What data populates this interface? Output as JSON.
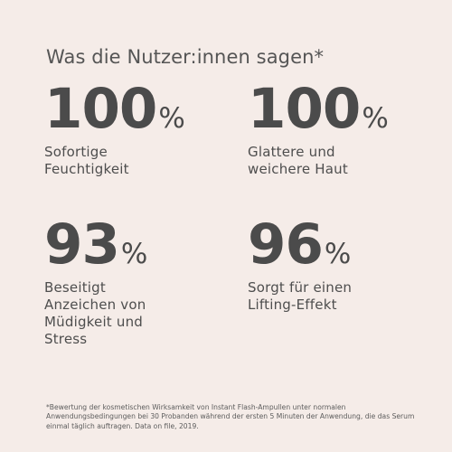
{
  "heading": "Was die Nutzer:innen sagen*",
  "stats": [
    {
      "value": "100",
      "unit": "%",
      "label": "Sofortige\nFeuchtigkeit"
    },
    {
      "value": "100",
      "unit": "%",
      "label": "Glattere und\nweichere Haut"
    },
    {
      "value": "93",
      "unit": "%",
      "label": "Beseitigt\nAnzeichen von\nMüdigkeit und\nStress"
    },
    {
      "value": "96",
      "unit": "%",
      "label": "Sorgt für einen\nLifting-Effekt"
    }
  ],
  "footnote": "*Bewertung der kosmetischen Wirksamkeit von Instant Flash-Ampullen unter normalen Anwendungsbedingungen bei 30 Probanden während der ersten 5 Minuten der Anwendung, die das Serum einmal täglich auftragen. Data on file, 2019."
}
